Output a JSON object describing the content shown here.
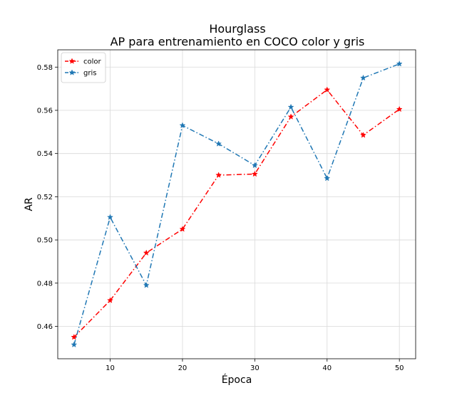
{
  "chart_data": {
    "type": "line",
    "title": "Hourglass",
    "subtitle": "AP para entrenamiento en COCO color y gris",
    "xlabel": "Época",
    "ylabel": "AR",
    "xlim": [
      2.75,
      52.25
    ],
    "ylim": [
      0.445,
      0.588
    ],
    "xticks": [
      10,
      20,
      30,
      40,
      50
    ],
    "yticks": [
      0.46,
      0.48,
      0.5,
      0.52,
      0.54,
      0.56,
      0.58
    ],
    "ytick_labels": [
      "0.46",
      "0.48",
      "0.50",
      "0.52",
      "0.54",
      "0.56",
      "0.58"
    ],
    "grid": true,
    "legend_position": "top-left",
    "x": [
      5,
      10,
      15,
      20,
      25,
      30,
      35,
      40,
      45,
      50
    ],
    "series": [
      {
        "name": "color",
        "color": "#ff0000",
        "values": [
          0.455,
          0.472,
          0.494,
          0.505,
          0.53,
          0.5305,
          0.557,
          0.5695,
          0.5485,
          0.5605
        ]
      },
      {
        "name": "gris",
        "color": "#1f77b4",
        "values": [
          0.4515,
          0.5105,
          0.479,
          0.553,
          0.5445,
          0.5345,
          0.5615,
          0.5285,
          0.575,
          0.5815
        ]
      }
    ]
  }
}
